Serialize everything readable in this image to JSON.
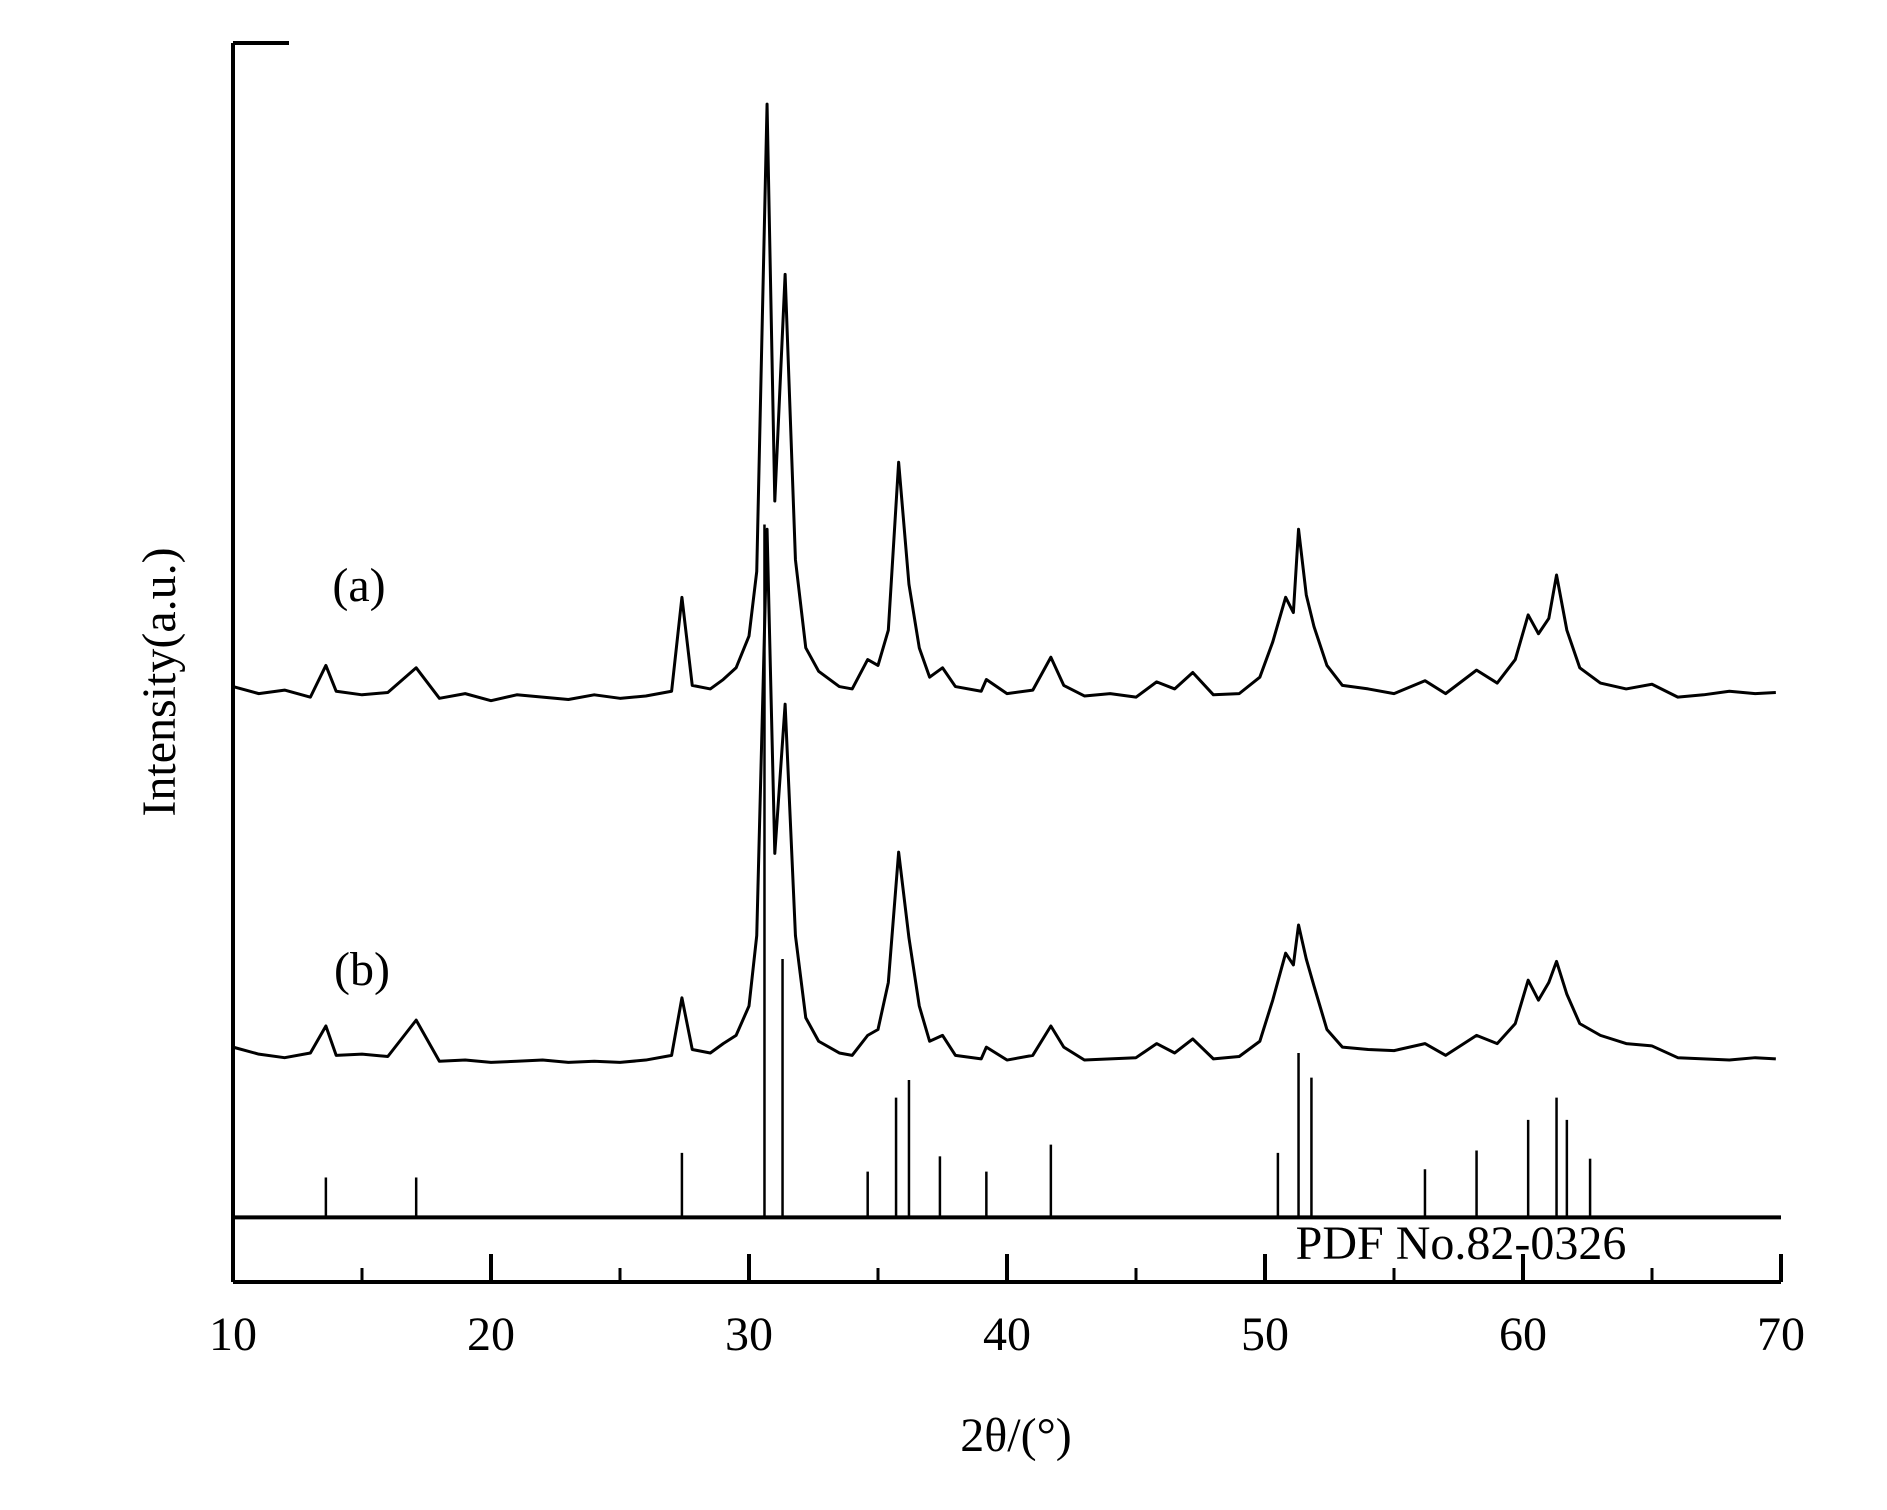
{
  "chart_data": {
    "type": "line",
    "x_label": "2θ/(°)",
    "y_label": "Intensity(a.u.)",
    "xlim": [
      10,
      70
    ],
    "xticks": [
      10,
      20,
      30,
      40,
      50,
      60,
      70
    ],
    "xminorticks": [
      15,
      25,
      35,
      45,
      55,
      65
    ],
    "ylim": [
      -5.5,
      100
    ],
    "x": [
      10,
      11,
      12,
      13,
      13.6,
      14,
      15,
      16,
      17.1,
      18,
      19,
      20,
      21,
      22,
      23,
      24,
      25,
      26,
      27,
      27.4,
      27.8,
      28.5,
      29,
      29.5,
      30,
      30.3,
      30.7,
      31.0,
      31.4,
      31.8,
      32.2,
      32.7,
      33.5,
      34,
      34.6,
      35,
      35.4,
      35.8,
      36.2,
      36.6,
      37,
      37.5,
      38,
      39,
      39.2,
      40,
      41,
      41.7,
      42.2,
      43,
      44,
      45,
      45.8,
      46.5,
      47.2,
      48,
      49,
      49.8,
      50.3,
      50.8,
      51.1,
      51.3,
      51.6,
      51.9,
      52.4,
      53,
      54,
      55,
      56.2,
      57,
      58.2,
      59,
      59.7,
      60.2,
      60.6,
      61,
      61.3,
      61.7,
      62.2,
      63,
      64,
      65,
      66,
      67,
      68,
      69,
      69.8
    ],
    "series": [
      {
        "name": "(a)",
        "color": "#000000",
        "values": [
          45.2,
          44.6,
          44.9,
          44.3,
          47.0,
          44.8,
          44.5,
          44.7,
          46.8,
          44.2,
          44.6,
          44.0,
          44.5,
          44.3,
          44.1,
          44.5,
          44.2,
          44.4,
          44.8,
          52.8,
          45.3,
          45.0,
          45.8,
          46.8,
          49.5,
          55,
          94.8,
          61,
          80.3,
          56,
          48.5,
          46.5,
          45.2,
          45.0,
          47.5,
          47,
          50,
          64.3,
          53.9,
          48.5,
          46,
          46.8,
          45.2,
          44.8,
          45.8,
          44.6,
          44.9,
          47.7,
          45.3,
          44.4,
          44.6,
          44.3,
          45.6,
          45.0,
          46.4,
          44.5,
          44.6,
          46,
          49,
          52.8,
          51.5,
          58.6,
          53,
          50.3,
          47,
          45.3,
          45.0,
          44.6,
          45.7,
          44.6,
          46.6,
          45.5,
          47.5,
          51.3,
          49.7,
          51,
          54.7,
          50,
          46.8,
          45.5,
          45.0,
          45.4,
          44.3,
          44.5,
          44.8,
          44.6,
          44.7
        ]
      },
      {
        "name": "(b)",
        "color": "#000000",
        "values": [
          14.5,
          13.9,
          13.6,
          14.0,
          16.3,
          13.8,
          13.9,
          13.7,
          16.8,
          13.3,
          13.4,
          13.2,
          13.3,
          13.4,
          13.2,
          13.3,
          13.2,
          13.4,
          13.8,
          18.7,
          14.3,
          14.0,
          14.8,
          15.5,
          18,
          24,
          58.6,
          31,
          43.7,
          24,
          17,
          15,
          14,
          13.8,
          15.5,
          16,
          20,
          31.1,
          23.8,
          18,
          15,
          15.5,
          13.8,
          13.5,
          14.5,
          13.4,
          13.8,
          16.3,
          14.5,
          13.4,
          13.5,
          13.6,
          14.8,
          14.0,
          15.2,
          13.5,
          13.7,
          15,
          18.5,
          22.5,
          21.5,
          24.9,
          22,
          19.7,
          16,
          14.5,
          14.3,
          14.2,
          14.8,
          13.8,
          15.5,
          14.8,
          16.5,
          20.2,
          18.5,
          20,
          21.8,
          19,
          16.5,
          15.5,
          14.8,
          14.6,
          13.6,
          13.5,
          13.4,
          13.6,
          13.5
        ]
      }
    ],
    "reference": {
      "label": "PDF No.82-0326",
      "color": "#000000",
      "x": [
        13.6,
        17.1,
        27.4,
        30.6,
        31.3,
        34.6,
        35.7,
        36.2,
        37.4,
        39.2,
        41.7,
        50.5,
        51.3,
        51.8,
        56.2,
        58.2,
        60.2,
        61.3,
        61.7,
        62.6
      ],
      "values": [
        3.4,
        3.4,
        5.5,
        59,
        22,
        3.9,
        10.2,
        11.7,
        5.2,
        3.9,
        6.2,
        5.5,
        14,
        11.9,
        4.1,
        5.7,
        8.3,
        10.2,
        8.3,
        5.0
      ]
    }
  }
}
